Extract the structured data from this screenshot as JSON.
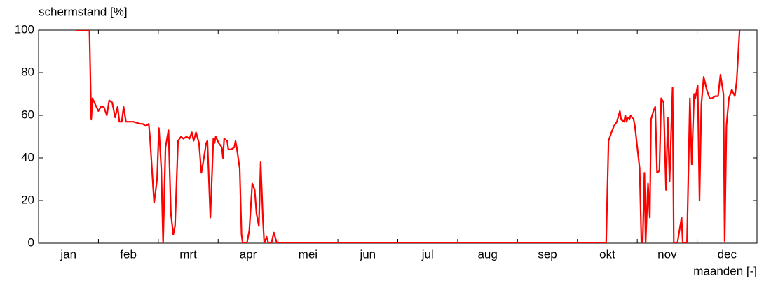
{
  "chart_data": {
    "type": "line",
    "y_label": "schermstand [%]",
    "x_label": "maanden [-]",
    "categories": [
      "jan",
      "feb",
      "mrt",
      "apr",
      "mei",
      "jun",
      "jul",
      "aug",
      "sep",
      "okt",
      "nov",
      "dec"
    ],
    "color": "#ff0000",
    "x": [
      0,
      0.02,
      0.3,
      0.62,
      0.85,
      0.88,
      0.9,
      0.95,
      1.0,
      1.04,
      1.09,
      1.14,
      1.18,
      1.23,
      1.28,
      1.32,
      1.35,
      1.39,
      1.42,
      1.46,
      1.58,
      1.7,
      1.74,
      1.79,
      1.84,
      1.86,
      1.91,
      1.93,
      1.98,
      2.01,
      2.05,
      2.08,
      2.12,
      2.17,
      2.21,
      2.25,
      2.28,
      2.33,
      2.38,
      2.42,
      2.47,
      2.52,
      2.56,
      2.59,
      2.63,
      2.68,
      2.72,
      2.75,
      2.8,
      2.82,
      2.87,
      2.92,
      2.94,
      2.96,
      3.01,
      3.06,
      3.08,
      3.1,
      3.15,
      3.17,
      3.22,
      3.27,
      3.29,
      3.31,
      3.36,
      3.39,
      3.41,
      3.48,
      3.52,
      3.57,
      3.61,
      3.64,
      3.68,
      3.71,
      3.75,
      3.77,
      3.81,
      3.84,
      3.89,
      3.93,
      3.96,
      3.98,
      9.48,
      9.52,
      9.57,
      9.61,
      9.66,
      9.71,
      9.73,
      9.78,
      9.8,
      9.82,
      9.85,
      9.87,
      9.89,
      9.94,
      9.96,
      10.04,
      10.07,
      10.09,
      10.12,
      10.14,
      10.18,
      10.21,
      10.23,
      10.27,
      10.3,
      10.33,
      10.37,
      10.4,
      10.44,
      10.48,
      10.51,
      10.54,
      10.59,
      10.61,
      10.67,
      10.74,
      10.76,
      10.83,
      10.88,
      10.91,
      10.95,
      10.97,
      11.01,
      11.04,
      11.07,
      11.11,
      11.16,
      11.21,
      11.25,
      11.3,
      11.35,
      11.39,
      11.44,
      11.46,
      11.49,
      11.53,
      11.58,
      11.63,
      11.66,
      11.71
    ],
    "values": [
      100,
      100,
      null,
      100,
      100,
      58,
      68,
      65,
      62,
      64,
      64,
      60,
      67,
      66,
      59,
      64,
      57,
      57,
      64,
      57,
      57,
      56,
      56,
      55,
      56,
      50,
      28,
      19,
      30,
      54,
      35,
      0,
      45,
      53,
      14,
      4,
      8,
      48,
      50,
      49,
      50,
      49,
      52,
      48,
      52,
      47,
      33,
      38,
      47,
      48,
      12,
      49,
      47,
      50,
      47,
      45,
      40,
      49,
      48,
      44,
      44,
      45,
      48,
      45,
      35,
      4,
      0,
      0,
      6,
      28,
      25,
      14,
      8,
      38,
      10,
      0,
      3,
      0,
      0,
      5,
      2,
      0,
      0,
      48,
      52,
      55,
      57,
      62,
      58,
      57,
      60,
      57,
      59,
      58,
      60,
      58,
      55,
      35,
      0,
      0,
      33,
      0,
      28,
      12,
      58,
      62,
      64,
      33,
      34,
      68,
      66,
      25,
      59,
      29,
      73,
      0,
      0,
      12,
      0,
      0,
      68,
      37,
      70,
      68,
      74,
      20,
      65,
      78,
      72,
      68,
      68,
      69,
      69,
      79,
      70,
      1,
      55,
      68,
      72,
      69,
      76,
      100
    ],
    "xlim": [
      0,
      12
    ],
    "xticks": [
      1,
      2,
      3,
      4,
      5,
      6,
      7,
      8,
      9,
      10,
      11
    ],
    "ylim": [
      0,
      100
    ],
    "yticks": [
      0,
      20,
      40,
      60,
      80,
      100
    ]
  }
}
